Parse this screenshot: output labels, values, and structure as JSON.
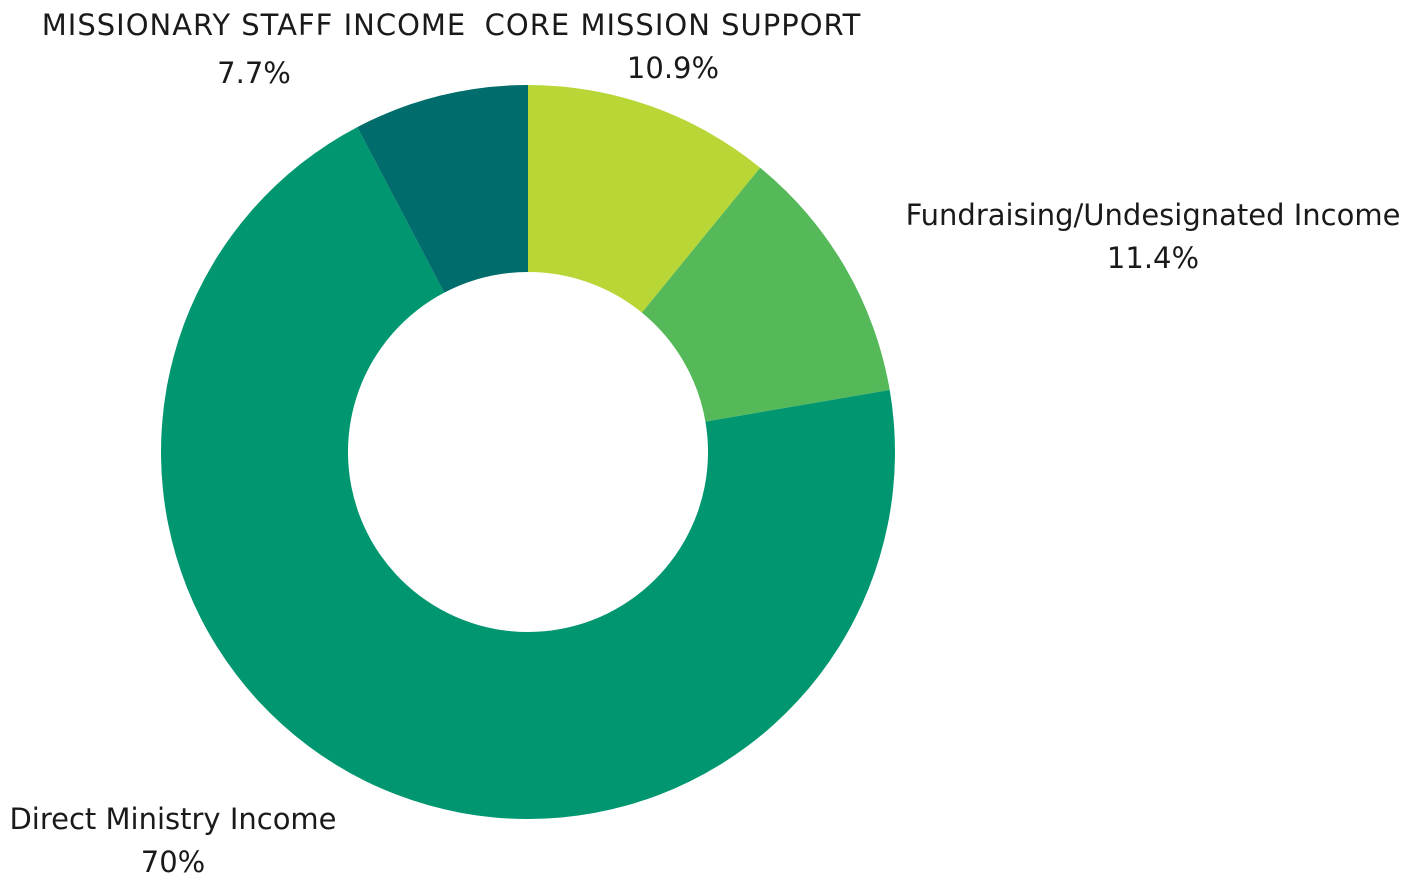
{
  "chart_data": {
    "type": "pie",
    "variant": "donut",
    "title": "",
    "slices": [
      {
        "label": "CORE MISSION SUPPORT",
        "value": 10.9,
        "value_label": "10.9%",
        "color": "#b8d736"
      },
      {
        "label": "Fundraising/Undesignated Income",
        "value": 11.4,
        "value_label": "11.4%",
        "color": "#55b95a"
      },
      {
        "label": "Direct Ministry Income",
        "value": 70,
        "value_label": "70%",
        "color": "#009670"
      },
      {
        "label": "MISSIONARY STAFF INCOME",
        "value": 7.7,
        "value_label": "7.7%",
        "color": "#006d6c"
      }
    ],
    "legend": "none"
  }
}
